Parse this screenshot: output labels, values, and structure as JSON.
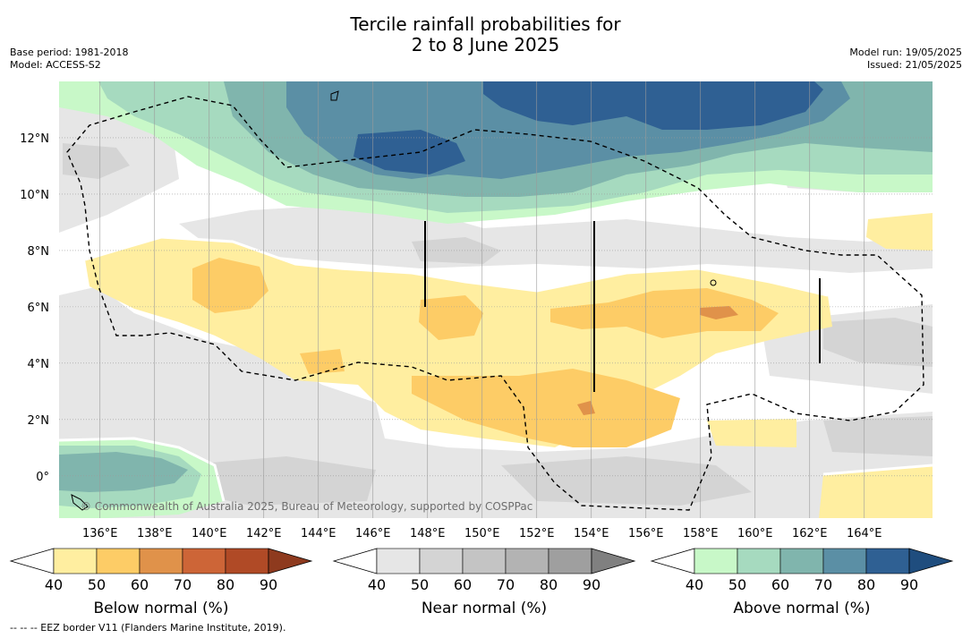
{
  "title": {
    "line1": "Tercile rainfall probabilities for",
    "line2": "2 to 8 June 2025"
  },
  "meta_left": {
    "base_period": "Base period: 1981-2018",
    "model": "Model: ACCESS-S2"
  },
  "meta_right": {
    "model_run": "Model run: 19/05/2025",
    "issued": "Issued: 21/05/2025"
  },
  "map": {
    "lon_range": [
      134.5,
      166.5
    ],
    "lat_range": [
      -1.5,
      14
    ],
    "lon_labels": [
      "136°E",
      "138°E",
      "140°E",
      "142°E",
      "144°E",
      "146°E",
      "148°E",
      "150°E",
      "152°E",
      "154°E",
      "156°E",
      "158°E",
      "160°E",
      "162°E",
      "164°E"
    ],
    "lat_labels": [
      "12°N",
      "10°N",
      "8°N",
      "6°N",
      "4°N",
      "2°N",
      "0°"
    ],
    "copyright": "© Commonwealth of Australia 2025, Bureau of Meteorology, supported by COSPPac",
    "colors": {
      "near_40": "#e6e6e6",
      "near_50": "#d4d4d4",
      "below_40": "#ffeea0",
      "below_50": "#fdcc66",
      "below_60": "#e0924a",
      "above_40": "#c8f8c8",
      "above_50": "#a6dabf",
      "above_60": "#80b5ad",
      "above_70": "#5b8fa5",
      "above_80": "#2f6093"
    }
  },
  "colorbars": [
    {
      "name": "below",
      "label": "Below normal (%)",
      "ticks": [
        "40",
        "50",
        "60",
        "70",
        "80",
        "90"
      ],
      "colors": [
        "#ffeea0",
        "#fdcc66",
        "#e0924a",
        "#cd6537",
        "#b04a26"
      ],
      "extend_color": "#8e3a1e"
    },
    {
      "name": "near",
      "label": "Near normal (%)",
      "ticks": [
        "40",
        "50",
        "60",
        "70",
        "80",
        "90"
      ],
      "colors": [
        "#e6e6e6",
        "#d4d4d4",
        "#c4c4c4",
        "#b3b3b3",
        "#9f9f9f"
      ],
      "extend_color": "#808080"
    },
    {
      "name": "above",
      "label": "Above normal (%)",
      "ticks": [
        "40",
        "50",
        "60",
        "70",
        "80",
        "90"
      ],
      "colors": [
        "#c8f8c8",
        "#a6dabf",
        "#80b5ad",
        "#5b8fa5",
        "#2f6093"
      ],
      "extend_color": "#1f4d7e"
    }
  ],
  "footnote": "--  --  -- EEZ border V11 (Flanders Marine Institute, 2019)."
}
